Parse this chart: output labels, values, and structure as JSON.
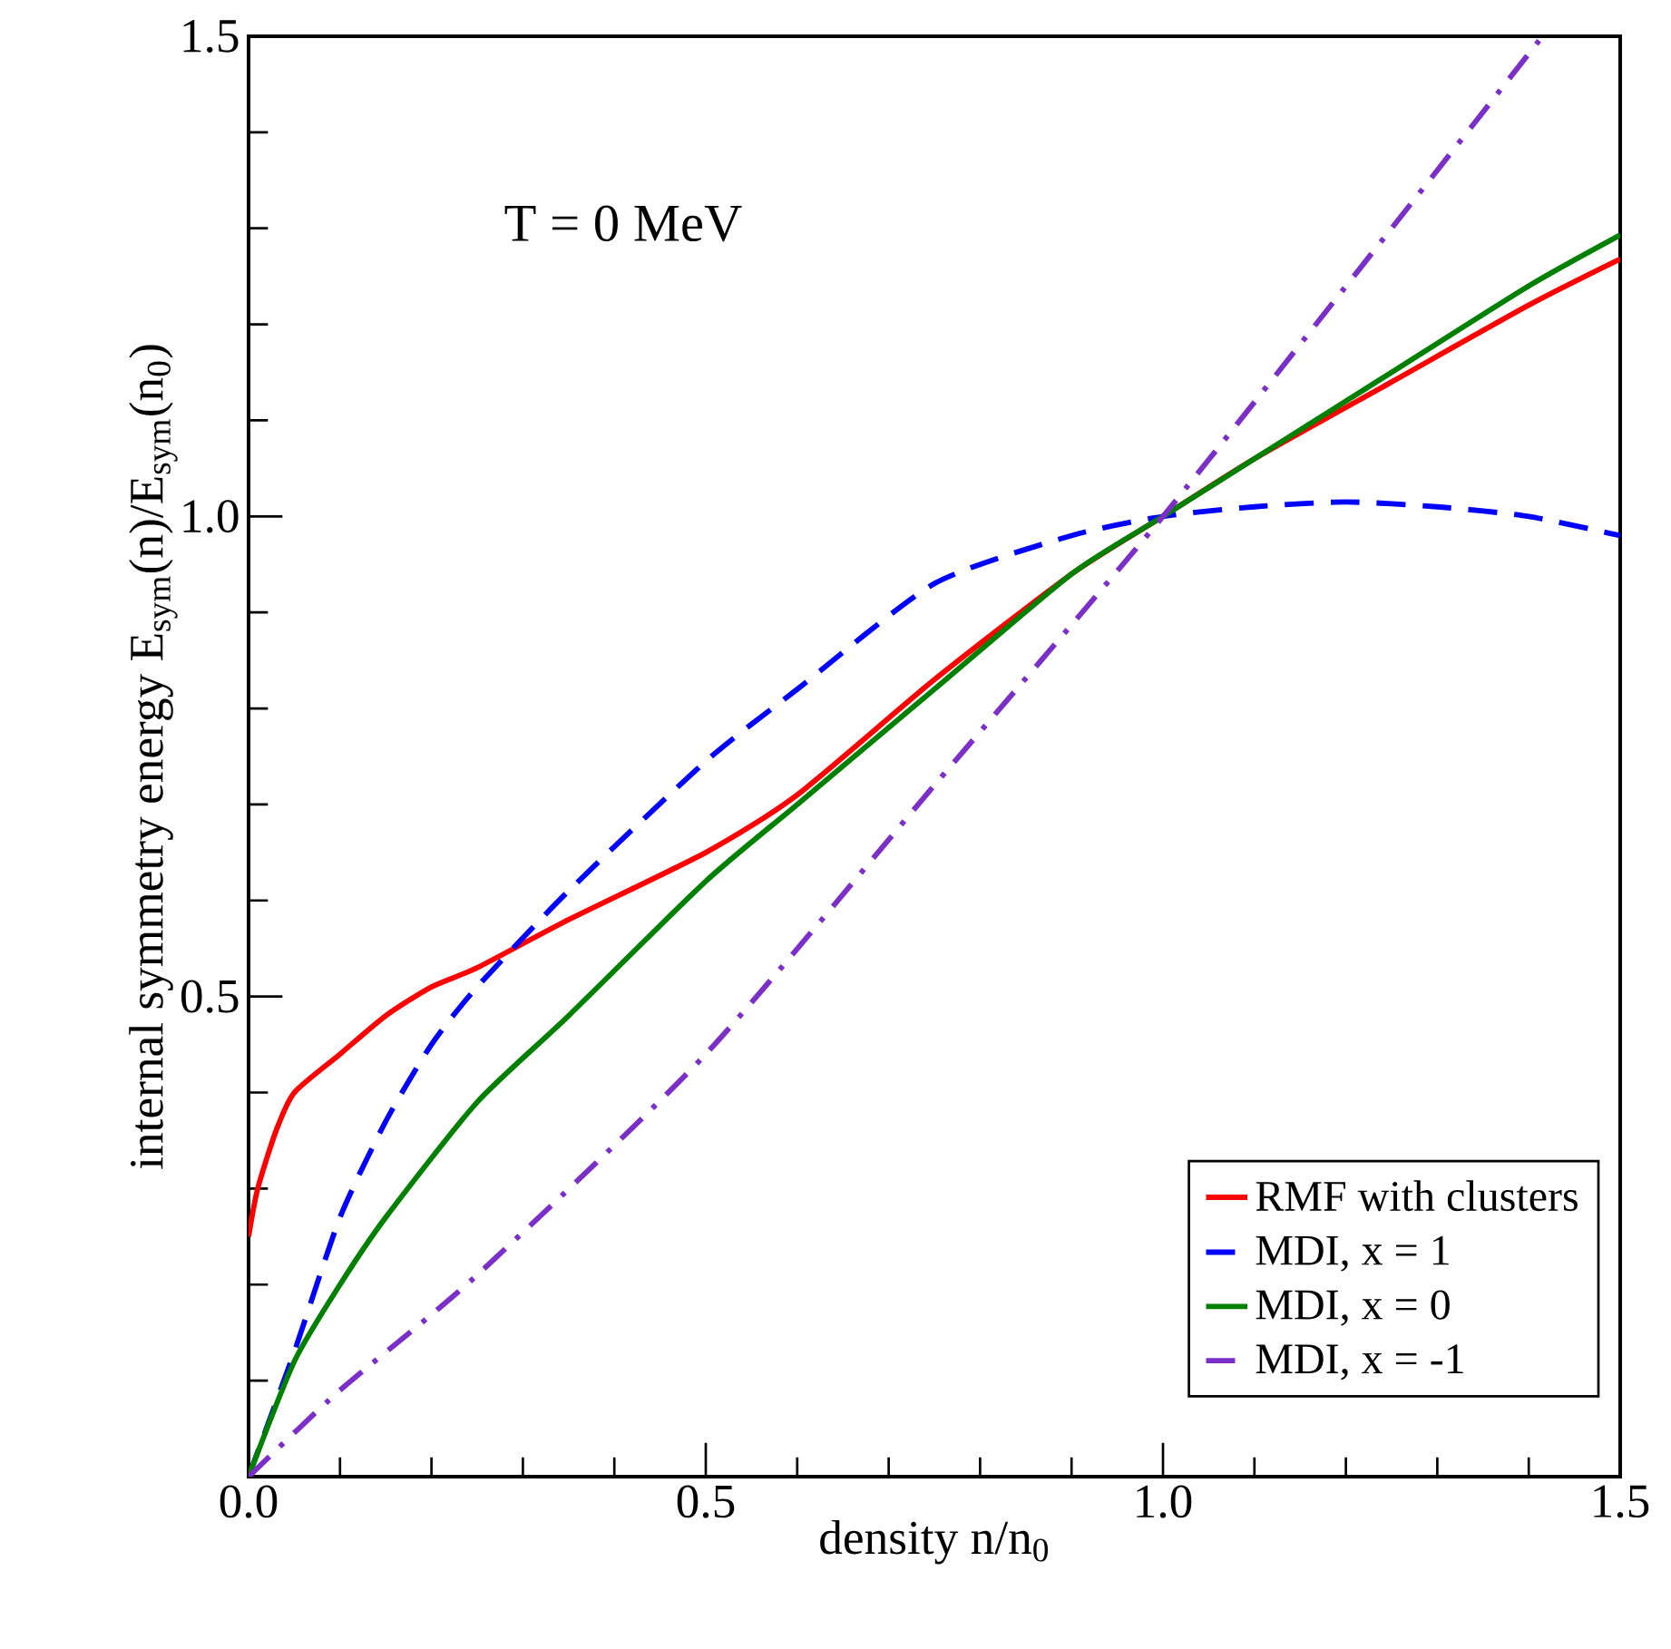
{
  "chart_data": {
    "type": "line",
    "xlabel": "density   n/n$_{0}$",
    "ylabel": "internal symmetry energy  E$_{sym}$(n)/E$_{sym}$(n$_{0}$)",
    "annotations": [
      "T = 0 MeV"
    ],
    "xlim": [
      0,
      1.5
    ],
    "ylim": [
      0,
      1.5
    ],
    "xticks": [
      {
        "value": 0,
        "label": "0.0"
      },
      0.5,
      {
        "value": 1,
        "label": "1.0"
      },
      1.5
    ],
    "yticks": [
      {
        "value": 0,
        "label": null
      },
      0.5,
      {
        "value": 1,
        "label": "1.0"
      },
      1.5
    ],
    "legend": "bottom right",
    "grid": false,
    "series": [
      {
        "name": "RMF with clusters",
        "color": "#ff0000",
        "line_style": "solid",
        "x": [
          0,
          0.01,
          0.03,
          0.05,
          0.1,
          0.15,
          0.2,
          0.25,
          0.35,
          0.5,
          0.6,
          0.75,
          0.9,
          1,
          1.1,
          1.25,
          1.4,
          1.5
        ],
        "values": [
          0.25,
          0.3,
          0.36,
          0.4,
          0.44,
          0.48,
          0.51,
          0.53,
          0.58,
          0.65,
          0.71,
          0.83,
          0.94,
          1,
          1.06,
          1.14,
          1.22,
          1.268
        ]
      },
      {
        "name": "MDI, x =  1",
        "color": "#0000ff",
        "line_style": "dashed",
        "x": [
          0,
          0.05,
          0.1,
          0.15,
          0.2,
          0.25,
          0.35,
          0.5,
          0.6,
          0.75,
          0.9,
          1,
          1.1,
          1.2,
          1.3,
          1.4,
          1.5
        ],
        "values": [
          0,
          0.13,
          0.27,
          0.37,
          0.45,
          0.51,
          0.61,
          0.745,
          0.82,
          0.93,
          0.98,
          1,
          1.01,
          1.015,
          1.01,
          1.0,
          0.98
        ]
      },
      {
        "name": "MDI, x =  0",
        "color": "#008000",
        "line_style": "solid",
        "x": [
          0,
          0.05,
          0.1,
          0.15,
          0.25,
          0.35,
          0.5,
          0.6,
          0.75,
          0.9,
          1,
          1.1,
          1.25,
          1.4,
          1.5
        ],
        "values": [
          0,
          0.12,
          0.2,
          0.27,
          0.39,
          0.48,
          0.62,
          0.7,
          0.82,
          0.94,
          1,
          1.06,
          1.15,
          1.24,
          1.293
        ]
      },
      {
        "name": "MDI, x = -1",
        "color": "#7b2fc8",
        "line_style": "dashdot",
        "x": [
          0,
          0.1,
          0.25,
          0.5,
          0.75,
          1,
          1.25,
          1.415
        ],
        "values": [
          0,
          0.09,
          0.21,
          0.44,
          0.72,
          1,
          1.3,
          1.5
        ]
      }
    ]
  }
}
